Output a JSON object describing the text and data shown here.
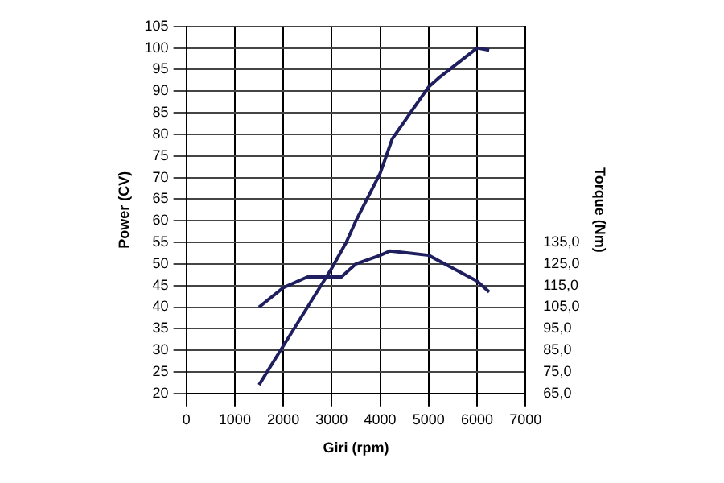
{
  "chart_data": {
    "type": "line",
    "xlabel": "Giri (rpm)",
    "ylabel": "Power (CV)",
    "y2label": "Torque (Nm)",
    "xlim": [
      0,
      7000
    ],
    "xticks": [
      0,
      1000,
      2000,
      3000,
      4000,
      5000,
      6000,
      7000
    ],
    "ylim": [
      20,
      105
    ],
    "yticks": [
      20,
      25,
      30,
      35,
      40,
      45,
      50,
      55,
      60,
      65,
      70,
      75,
      80,
      85,
      90,
      95,
      100,
      105
    ],
    "y2lim": [
      65,
      235
    ],
    "y2ticks": [
      {
        "value": 65,
        "label": "65,0"
      },
      {
        "value": 75,
        "label": "75,0"
      },
      {
        "value": 85,
        "label": "85,0"
      },
      {
        "value": 95,
        "label": "95,0"
      },
      {
        "value": 105,
        "label": "105,0"
      },
      {
        "value": 115,
        "label": "115,0"
      },
      {
        "value": 125,
        "label": "125,0"
      },
      {
        "value": 135,
        "label": "135,0"
      }
    ],
    "grid": true,
    "marker": "none",
    "line_style": "solid",
    "series": [
      {
        "color": "#1f1f5f",
        "x": [
          1500,
          2000,
          2500,
          3000,
          3300,
          3500,
          4000,
          4250,
          4500,
          5000,
          5200,
          6000,
          6250
        ],
        "values": [
          22,
          31,
          40,
          49,
          55,
          60,
          71,
          79,
          83,
          91,
          93,
          100,
          99.5
        ]
      },
      {
        "color": "#1f1f5f",
        "axis": "y2",
        "x": [
          1500,
          2000,
          2500,
          2900,
          3200,
          3500,
          4000,
          4200,
          5000,
          5500,
          6000,
          6250
        ],
        "values": [
          105,
          114,
          119,
          119,
          119,
          125,
          129,
          131,
          129,
          123,
          117,
          112
        ]
      }
    ]
  }
}
